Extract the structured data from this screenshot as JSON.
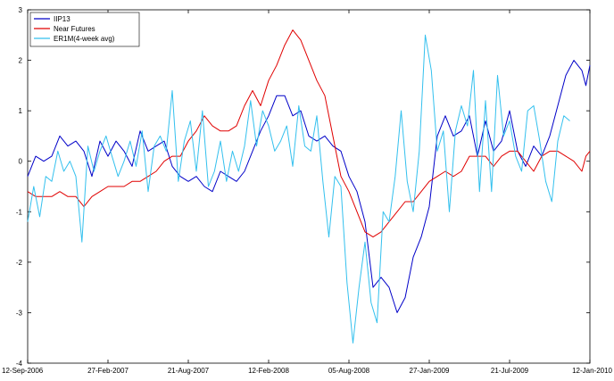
{
  "chart_data": {
    "type": "line",
    "title": "",
    "xlabel": "",
    "ylabel": "",
    "x_tick_labels": [
      "12-Sep-2006",
      "27-Feb-2007",
      "21-Aug-2007",
      "12-Feb-2008",
      "05-Aug-2008",
      "27-Jan-2009",
      "21-Jul-2009",
      "12-Jan-2010"
    ],
    "y_ticks": [
      -4,
      -3,
      -2,
      -1,
      0,
      1,
      2,
      3
    ],
    "ylim": [
      -4,
      3
    ],
    "grid": false,
    "legend_position": "top-left",
    "series": [
      {
        "name": "IIP13",
        "color": "#0000c8",
        "points": [
          [
            0,
            -0.3
          ],
          [
            4,
            0.1
          ],
          [
            8,
            0.0
          ],
          [
            12,
            0.1
          ],
          [
            16,
            0.5
          ],
          [
            20,
            0.3
          ],
          [
            24,
            0.4
          ],
          [
            28,
            0.2
          ],
          [
            32,
            -0.3
          ],
          [
            36,
            0.4
          ],
          [
            40,
            0.1
          ],
          [
            44,
            0.4
          ],
          [
            48,
            0.2
          ],
          [
            52,
            -0.1
          ],
          [
            56,
            0.6
          ],
          [
            60,
            0.2
          ],
          [
            64,
            0.3
          ],
          [
            68,
            0.4
          ],
          [
            72,
            -0.1
          ],
          [
            76,
            -0.3
          ],
          [
            80,
            -0.4
          ],
          [
            84,
            -0.3
          ],
          [
            88,
            -0.5
          ],
          [
            92,
            -0.6
          ],
          [
            96,
            -0.2
          ],
          [
            100,
            -0.3
          ],
          [
            104,
            -0.4
          ],
          [
            108,
            -0.2
          ],
          [
            112,
            0.2
          ],
          [
            116,
            0.6
          ],
          [
            120,
            0.9
          ],
          [
            124,
            1.3
          ],
          [
            128,
            1.3
          ],
          [
            132,
            0.9
          ],
          [
            136,
            1.0
          ],
          [
            140,
            0.5
          ],
          [
            144,
            0.4
          ],
          [
            148,
            0.5
          ],
          [
            152,
            0.3
          ],
          [
            156,
            0.2
          ],
          [
            160,
            -0.3
          ],
          [
            164,
            -0.6
          ],
          [
            168,
            -1.2
          ],
          [
            172,
            -2.5
          ],
          [
            176,
            -2.3
          ],
          [
            180,
            -2.5
          ],
          [
            184,
            -3.0
          ],
          [
            188,
            -2.7
          ],
          [
            192,
            -1.9
          ],
          [
            196,
            -1.5
          ],
          [
            200,
            -0.9
          ],
          [
            204,
            0.5
          ],
          [
            208,
            0.9
          ],
          [
            212,
            0.5
          ],
          [
            216,
            0.6
          ],
          [
            220,
            0.9
          ],
          [
            224,
            0.1
          ],
          [
            228,
            0.8
          ],
          [
            232,
            0.2
          ],
          [
            236,
            0.4
          ],
          [
            240,
            1.0
          ],
          [
            244,
            0.2
          ],
          [
            248,
            -0.1
          ],
          [
            252,
            0.3
          ],
          [
            256,
            0.1
          ],
          [
            260,
            0.5
          ],
          [
            264,
            1.1
          ],
          [
            268,
            1.7
          ],
          [
            272,
            2.0
          ],
          [
            276,
            1.8
          ],
          [
            278,
            1.5
          ],
          [
            280,
            1.9
          ]
        ]
      },
      {
        "name": "Near Futures",
        "color": "#e00000",
        "points": [
          [
            0,
            -0.6
          ],
          [
            4,
            -0.7
          ],
          [
            8,
            -0.7
          ],
          [
            12,
            -0.7
          ],
          [
            16,
            -0.6
          ],
          [
            20,
            -0.7
          ],
          [
            24,
            -0.7
          ],
          [
            28,
            -0.9
          ],
          [
            32,
            -0.7
          ],
          [
            36,
            -0.6
          ],
          [
            40,
            -0.5
          ],
          [
            44,
            -0.5
          ],
          [
            48,
            -0.5
          ],
          [
            52,
            -0.4
          ],
          [
            56,
            -0.4
          ],
          [
            60,
            -0.3
          ],
          [
            64,
            -0.2
          ],
          [
            68,
            0.0
          ],
          [
            72,
            0.1
          ],
          [
            76,
            0.1
          ],
          [
            80,
            0.4
          ],
          [
            84,
            0.6
          ],
          [
            88,
            0.9
          ],
          [
            92,
            0.7
          ],
          [
            96,
            0.6
          ],
          [
            100,
            0.6
          ],
          [
            104,
            0.7
          ],
          [
            108,
            1.1
          ],
          [
            112,
            1.4
          ],
          [
            116,
            1.1
          ],
          [
            120,
            1.6
          ],
          [
            124,
            1.9
          ],
          [
            128,
            2.3
          ],
          [
            132,
            2.6
          ],
          [
            136,
            2.4
          ],
          [
            140,
            2.0
          ],
          [
            144,
            1.6
          ],
          [
            148,
            1.3
          ],
          [
            152,
            0.5
          ],
          [
            156,
            -0.3
          ],
          [
            160,
            -0.6
          ],
          [
            164,
            -1.0
          ],
          [
            168,
            -1.4
          ],
          [
            172,
            -1.5
          ],
          [
            176,
            -1.4
          ],
          [
            180,
            -1.2
          ],
          [
            184,
            -1.0
          ],
          [
            188,
            -0.8
          ],
          [
            192,
            -0.8
          ],
          [
            196,
            -0.6
          ],
          [
            200,
            -0.4
          ],
          [
            204,
            -0.3
          ],
          [
            208,
            -0.2
          ],
          [
            212,
            -0.3
          ],
          [
            216,
            -0.2
          ],
          [
            220,
            0.1
          ],
          [
            224,
            0.1
          ],
          [
            228,
            0.1
          ],
          [
            232,
            -0.1
          ],
          [
            236,
            0.1
          ],
          [
            240,
            0.2
          ],
          [
            244,
            0.2
          ],
          [
            248,
            0.0
          ],
          [
            252,
            -0.2
          ],
          [
            256,
            0.1
          ],
          [
            260,
            0.2
          ],
          [
            264,
            0.2
          ],
          [
            268,
            0.1
          ],
          [
            272,
            0.0
          ],
          [
            276,
            -0.2
          ],
          [
            278,
            0.1
          ],
          [
            280,
            0.2
          ]
        ]
      },
      {
        "name": "ER1M(4-week avg)",
        "color": "#33c0ee",
        "points": [
          [
            0,
            -1.2
          ],
          [
            3,
            -0.5
          ],
          [
            6,
            -1.1
          ],
          [
            9,
            -0.3
          ],
          [
            12,
            -0.4
          ],
          [
            15,
            0.2
          ],
          [
            18,
            -0.2
          ],
          [
            21,
            0.0
          ],
          [
            24,
            -0.3
          ],
          [
            27,
            -1.6
          ],
          [
            30,
            0.3
          ],
          [
            33,
            -0.2
          ],
          [
            36,
            0.2
          ],
          [
            39,
            0.5
          ],
          [
            42,
            0.1
          ],
          [
            45,
            -0.3
          ],
          [
            48,
            0.0
          ],
          [
            51,
            0.4
          ],
          [
            54,
            -0.1
          ],
          [
            57,
            0.6
          ],
          [
            60,
            -0.6
          ],
          [
            63,
            0.3
          ],
          [
            66,
            0.5
          ],
          [
            69,
            0.2
          ],
          [
            72,
            1.4
          ],
          [
            75,
            -0.4
          ],
          [
            78,
            0.4
          ],
          [
            81,
            0.8
          ],
          [
            84,
            -0.2
          ],
          [
            87,
            1.0
          ],
          [
            90,
            -0.5
          ],
          [
            93,
            -0.2
          ],
          [
            96,
            0.4
          ],
          [
            99,
            -0.4
          ],
          [
            102,
            0.2
          ],
          [
            105,
            -0.2
          ],
          [
            108,
            0.3
          ],
          [
            111,
            1.2
          ],
          [
            114,
            0.3
          ],
          [
            117,
            1.0
          ],
          [
            120,
            0.7
          ],
          [
            123,
            0.2
          ],
          [
            126,
            0.4
          ],
          [
            129,
            0.7
          ],
          [
            132,
            -0.1
          ],
          [
            135,
            1.1
          ],
          [
            138,
            0.3
          ],
          [
            141,
            0.2
          ],
          [
            144,
            0.9
          ],
          [
            147,
            -0.4
          ],
          [
            150,
            -1.5
          ],
          [
            153,
            -0.3
          ],
          [
            156,
            -0.5
          ],
          [
            159,
            -2.4
          ],
          [
            162,
            -3.6
          ],
          [
            165,
            -2.5
          ],
          [
            168,
            -1.6
          ],
          [
            171,
            -2.8
          ],
          [
            174,
            -3.2
          ],
          [
            177,
            -1.0
          ],
          [
            180,
            -1.2
          ],
          [
            183,
            -0.3
          ],
          [
            186,
            1.0
          ],
          [
            189,
            -0.4
          ],
          [
            192,
            -1.0
          ],
          [
            195,
            0.2
          ],
          [
            198,
            2.5
          ],
          [
            201,
            1.8
          ],
          [
            204,
            0.2
          ],
          [
            207,
            0.6
          ],
          [
            210,
            -1.0
          ],
          [
            213,
            0.6
          ],
          [
            216,
            1.1
          ],
          [
            219,
            0.7
          ],
          [
            222,
            1.8
          ],
          [
            225,
            -0.6
          ],
          [
            228,
            1.2
          ],
          [
            231,
            -0.6
          ],
          [
            234,
            1.7
          ],
          [
            237,
            0.5
          ],
          [
            240,
            0.8
          ],
          [
            243,
            0.1
          ],
          [
            246,
            -0.2
          ],
          [
            249,
            1.0
          ],
          [
            252,
            1.1
          ],
          [
            255,
            0.4
          ],
          [
            258,
            -0.4
          ],
          [
            261,
            -0.8
          ],
          [
            264,
            0.4
          ],
          [
            267,
            0.9
          ],
          [
            270,
            0.8
          ]
        ]
      }
    ]
  }
}
